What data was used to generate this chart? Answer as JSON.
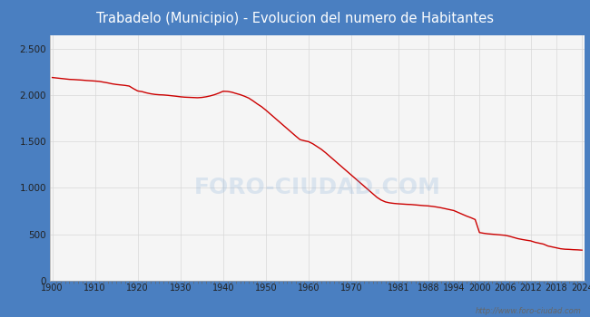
{
  "title": "Trabadelo (Municipio) - Evolucion del numero de Habitantes",
  "title_color": "#ffffff",
  "title_bg_color": "#4a7fc1",
  "plot_bg_color": "#f5f5f5",
  "line_color": "#cc0000",
  "watermark": "http://www.foro-ciudad.com",
  "years": [
    1900,
    1901,
    1902,
    1903,
    1904,
    1905,
    1906,
    1907,
    1908,
    1909,
    1910,
    1911,
    1912,
    1913,
    1914,
    1915,
    1916,
    1917,
    1918,
    1919,
    1920,
    1921,
    1922,
    1923,
    1924,
    1925,
    1926,
    1927,
    1928,
    1929,
    1930,
    1931,
    1932,
    1933,
    1934,
    1935,
    1936,
    1937,
    1938,
    1939,
    1940,
    1941,
    1942,
    1943,
    1944,
    1945,
    1946,
    1947,
    1948,
    1949,
    1950,
    1951,
    1952,
    1953,
    1954,
    1955,
    1956,
    1957,
    1958,
    1959,
    1960,
    1961,
    1962,
    1963,
    1964,
    1965,
    1966,
    1967,
    1968,
    1969,
    1970,
    1971,
    1972,
    1973,
    1974,
    1975,
    1976,
    1977,
    1978,
    1979,
    1980,
    1981,
    1982,
    1983,
    1984,
    1985,
    1986,
    1987,
    1988,
    1989,
    1990,
    1991,
    1992,
    1993,
    1994,
    1995,
    1996,
    1997,
    1998,
    1999,
    2000,
    2001,
    2002,
    2003,
    2004,
    2005,
    2006,
    2007,
    2008,
    2009,
    2010,
    2011,
    2012,
    2013,
    2014,
    2015,
    2016,
    2017,
    2018,
    2019,
    2020,
    2021,
    2022,
    2023,
    2024
  ],
  "population": [
    2190,
    2185,
    2180,
    2175,
    2170,
    2168,
    2165,
    2162,
    2158,
    2155,
    2152,
    2148,
    2140,
    2132,
    2122,
    2115,
    2110,
    2105,
    2098,
    2070,
    2045,
    2038,
    2025,
    2015,
    2008,
    2004,
    2002,
    1998,
    1993,
    1988,
    1982,
    1978,
    1976,
    1974,
    1972,
    1975,
    1982,
    1992,
    2005,
    2022,
    2042,
    2040,
    2032,
    2018,
    2005,
    1988,
    1968,
    1938,
    1905,
    1875,
    1838,
    1798,
    1758,
    1718,
    1678,
    1638,
    1598,
    1558,
    1520,
    1508,
    1498,
    1475,
    1445,
    1415,
    1378,
    1338,
    1298,
    1258,
    1218,
    1178,
    1138,
    1098,
    1058,
    1018,
    978,
    938,
    898,
    868,
    848,
    838,
    832,
    828,
    825,
    822,
    820,
    816,
    812,
    808,
    805,
    800,
    793,
    785,
    775,
    765,
    755,
    735,
    715,
    695,
    678,
    658,
    518,
    510,
    504,
    500,
    496,
    492,
    488,
    478,
    465,
    452,
    443,
    435,
    428,
    413,
    403,
    393,
    373,
    363,
    353,
    343,
    338,
    336,
    333,
    331,
    328
  ],
  "xtick_labels": [
    "1900",
    "1910",
    "1920",
    "1930",
    "1940",
    "1950",
    "1960",
    "1970",
    "1981",
    "1988",
    "1994",
    "2000",
    "2006",
    "2012",
    "2018",
    "2024"
  ],
  "xtick_positions": [
    1900,
    1910,
    1920,
    1930,
    1940,
    1950,
    1960,
    1970,
    1981,
    1988,
    1994,
    2000,
    2006,
    2012,
    2018,
    2024
  ],
  "ytick_labels": [
    "0",
    "500",
    "1.000",
    "1.500",
    "2.000",
    "2.500"
  ],
  "ytick_values": [
    0,
    500,
    1000,
    1500,
    2000,
    2500
  ],
  "ylim": [
    0,
    2650
  ],
  "xlim": [
    1899.5,
    2024.5
  ]
}
